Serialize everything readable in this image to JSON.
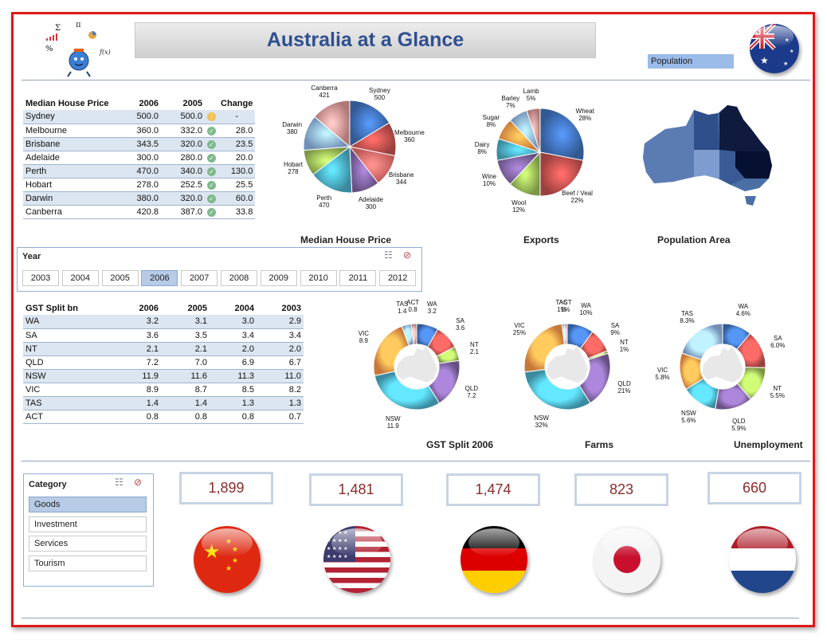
{
  "header": {
    "title": "Australia at a Glance",
    "population_label": "Population"
  },
  "house_table": {
    "headers": [
      "Median House Price",
      "2006",
      "2005",
      "",
      "Change"
    ],
    "rows": [
      [
        "Sydney",
        "500.0",
        "500.0",
        "-"
      ],
      [
        "Melbourne",
        "360.0",
        "332.0",
        "28.0"
      ],
      [
        "Brisbane",
        "343.5",
        "320.0",
        "23.5"
      ],
      [
        "Adelaide",
        "300.0",
        "280.0",
        "20.0"
      ],
      [
        "Perth",
        "470.0",
        "340.0",
        "130.0"
      ],
      [
        "Hobart",
        "278.0",
        "252.5",
        "25.5"
      ],
      [
        "Darwin",
        "380.0",
        "320.0",
        "60.0"
      ],
      [
        "Canberra",
        "420.8",
        "387.0",
        "33.8"
      ]
    ]
  },
  "year_slicer": {
    "title": "Year",
    "selected": "2006",
    "years": [
      "2003",
      "2004",
      "2005",
      "2006",
      "2007",
      "2008",
      "2009",
      "2010",
      "2011",
      "2012"
    ]
  },
  "gst_table": {
    "headers": [
      "GST Split bn",
      "2006",
      "2005",
      "2004",
      "2003"
    ],
    "rows": [
      [
        "WA",
        "3.2",
        "3.1",
        "3.0",
        "2.9"
      ],
      [
        "SA",
        "3.6",
        "3.5",
        "3.4",
        "3.4"
      ],
      [
        "NT",
        "2.1",
        "2.1",
        "2.0",
        "2.0"
      ],
      [
        "QLD",
        "7.2",
        "7.0",
        "6.9",
        "6.7"
      ],
      [
        "NSW",
        "11.9",
        "11.6",
        "11.3",
        "11.0"
      ],
      [
        "VIC",
        "8.9",
        "8.7",
        "8.5",
        "8.2"
      ],
      [
        "TAS",
        "1.4",
        "1.4",
        "1.3",
        "1.3"
      ],
      [
        "ACT",
        "0.8",
        "0.8",
        "0.8",
        "0.7"
      ]
    ]
  },
  "category_slicer": {
    "title": "Category",
    "selected": "Goods",
    "items": [
      "Goods",
      "Investment",
      "Services",
      "Tourism"
    ]
  },
  "kpis": [
    "1,899",
    "1,481",
    "1,474",
    "823",
    "660"
  ],
  "flags": [
    "china-flag-icon",
    "usa-flag-icon",
    "germany-flag-icon",
    "japan-flag-icon",
    "netherlands-flag-icon"
  ],
  "chart_data": [
    {
      "type": "pie",
      "title": "Median House Price",
      "categories": [
        "Sydney",
        "Melbourne",
        "Brisbane",
        "Adelaide",
        "Perth",
        "Hobart",
        "Darwin",
        "Canberra"
      ],
      "values": [
        500,
        360,
        344,
        300,
        470,
        278,
        380,
        421
      ],
      "labels": [
        [
          "Sydney",
          "500"
        ],
        [
          "Melbourne",
          "360"
        ],
        [
          "Brisbane",
          "344"
        ],
        [
          "Adelaide",
          "300"
        ],
        [
          "Perth",
          "470"
        ],
        [
          "Hobart",
          "278"
        ],
        [
          "Darwin",
          "380"
        ],
        [
          "Canberra",
          "421"
        ]
      ],
      "colors": [
        "#3f6fb6",
        "#c0504d",
        "#e96c6a",
        "#8064a2",
        "#4aacc6",
        "#9bbb59",
        "#8eb4e3",
        "#d99694"
      ]
    },
    {
      "type": "pie",
      "title": "Exports",
      "categories": [
        "Wheat",
        "Beef / Veal",
        "Wool",
        "Wine",
        "Dairy",
        "Sugar",
        "Barley",
        "Lamb"
      ],
      "values": [
        28,
        22,
        12,
        10,
        8,
        8,
        7,
        5
      ],
      "labels": [
        [
          "Wheat",
          "28%"
        ],
        [
          "Beef / Veal",
          "22%"
        ],
        [
          "Wool",
          "12%"
        ],
        [
          "Wine",
          "10%"
        ],
        [
          "Dairy",
          "8%"
        ],
        [
          "Sugar",
          "8%"
        ],
        [
          "Barley",
          "7%"
        ],
        [
          "Lamb",
          "5%"
        ]
      ],
      "colors": [
        "#3f6fb6",
        "#c0504d",
        "#9bbb59",
        "#8064a2",
        "#4aacc6",
        "#f79646",
        "#8eb4e3",
        "#d99694"
      ]
    },
    {
      "type": "pie",
      "title": "GST Split 2006",
      "categories": [
        "WA",
        "SA",
        "NT",
        "QLD",
        "NSW",
        "VIC",
        "TAS",
        "ACT"
      ],
      "values": [
        3.2,
        3.6,
        2.1,
        7.2,
        11.9,
        8.9,
        1.4,
        0.8
      ],
      "labels": [
        [
          "WA",
          "3.2"
        ],
        [
          "SA",
          "3.6"
        ],
        [
          "NT",
          "2.1"
        ],
        [
          "QLD",
          "7.2"
        ],
        [
          "NSW",
          "11.9"
        ],
        [
          "VIC",
          "8.9"
        ],
        [
          "TAS",
          "1.4"
        ],
        [
          "ACT",
          "0.8"
        ]
      ],
      "colors": [
        "#3f6fb6",
        "#c0504d",
        "#9bbb59",
        "#8064a2",
        "#4aacc6",
        "#f79646",
        "#8eb4e3",
        "#d99694"
      ]
    },
    {
      "type": "pie",
      "title": "Farms",
      "categories": [
        "WA",
        "SA",
        "NT",
        "QLD",
        "NSW",
        "VIC",
        "TAS",
        "ACT"
      ],
      "values": [
        10,
        9,
        1,
        21,
        32,
        25,
        1,
        1
      ],
      "labels": [
        [
          "WA",
          "10%"
        ],
        [
          "SA",
          "9%"
        ],
        [
          "NT",
          "1%"
        ],
        [
          "QLD",
          "21%"
        ],
        [
          "NSW",
          "32%"
        ],
        [
          "VIC",
          "25%"
        ],
        [
          "TAS",
          "1%"
        ],
        [
          "ACT",
          "1%"
        ]
      ],
      "colors": [
        "#3f6fb6",
        "#c0504d",
        "#9bbb59",
        "#8064a2",
        "#4aacc6",
        "#f79646",
        "#8eb4e3",
        "#d99694"
      ]
    },
    {
      "type": "pie",
      "title": "Unemployment",
      "categories": [
        "WA",
        "SA",
        "NT",
        "QLD",
        "NSW",
        "VIC",
        "TAS"
      ],
      "values": [
        4.6,
        6.0,
        5.5,
        5.9,
        5.6,
        5.8,
        8.3
      ],
      "labels": [
        [
          "WA",
          "4.6%"
        ],
        [
          "SA",
          "6.0%"
        ],
        [
          "NT",
          "5.5%"
        ],
        [
          "QLD",
          "5.9%"
        ],
        [
          "NSW",
          "5.6%"
        ],
        [
          "VIC",
          "5.8%"
        ],
        [
          "TAS",
          "8.3%"
        ]
      ],
      "colors": [
        "#3f6fb6",
        "#c0504d",
        "#9bbb59",
        "#8064a2",
        "#4aacc6",
        "#f79646",
        "#8eb4e3"
      ]
    },
    {
      "type": "heatmap",
      "title": "Population Area"
    }
  ]
}
